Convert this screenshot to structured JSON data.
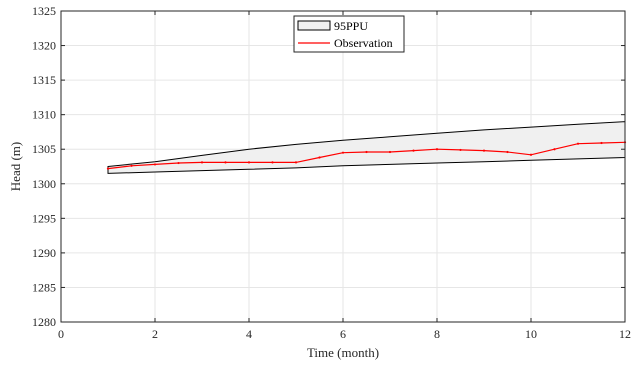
{
  "chart_data": {
    "type": "area",
    "title": "",
    "xlabel": "Time (month)",
    "ylabel": "Head (m)",
    "xlim": [
      0,
      12
    ],
    "ylim": [
      1280,
      1325
    ],
    "xticks": [
      0,
      2,
      4,
      6,
      8,
      10,
      12
    ],
    "yticks": [
      1280,
      1285,
      1290,
      1295,
      1300,
      1305,
      1310,
      1315,
      1320,
      1325
    ],
    "grid": true,
    "legend": "top-center",
    "colors": {
      "band_fill": "#f0f0f0",
      "band_edge": "#000000",
      "observation": "#ff0000",
      "grid": "#e6e6e6",
      "axis": "#262626"
    },
    "series": [
      {
        "name": "95PPU",
        "kind": "band",
        "x": [
          1,
          2,
          3,
          4,
          5,
          6,
          7,
          8,
          9,
          10,
          11,
          12
        ],
        "upper": [
          1302.5,
          1303.2,
          1304.1,
          1305.0,
          1305.7,
          1306.3,
          1306.8,
          1307.3,
          1307.8,
          1308.2,
          1308.6,
          1309.0
        ],
        "lower": [
          1301.5,
          1301.7,
          1301.9,
          1302.1,
          1302.3,
          1302.6,
          1302.8,
          1303.0,
          1303.2,
          1303.4,
          1303.6,
          1303.8
        ]
      },
      {
        "name": "Observation",
        "kind": "line",
        "x": [
          1,
          1.5,
          2,
          2.5,
          3,
          3.5,
          4,
          4.5,
          5,
          5.5,
          6,
          6.5,
          7,
          7.5,
          8,
          8.5,
          9,
          9.5,
          10,
          10.5,
          11,
          11.5,
          12
        ],
        "y": [
          1302.2,
          1302.6,
          1302.8,
          1303.0,
          1303.1,
          1303.1,
          1303.1,
          1303.1,
          1303.1,
          1303.8,
          1304.5,
          1304.6,
          1304.6,
          1304.8,
          1305.0,
          1304.9,
          1304.8,
          1304.6,
          1304.2,
          1305.0,
          1305.8,
          1305.9,
          1306.0
        ]
      }
    ]
  }
}
